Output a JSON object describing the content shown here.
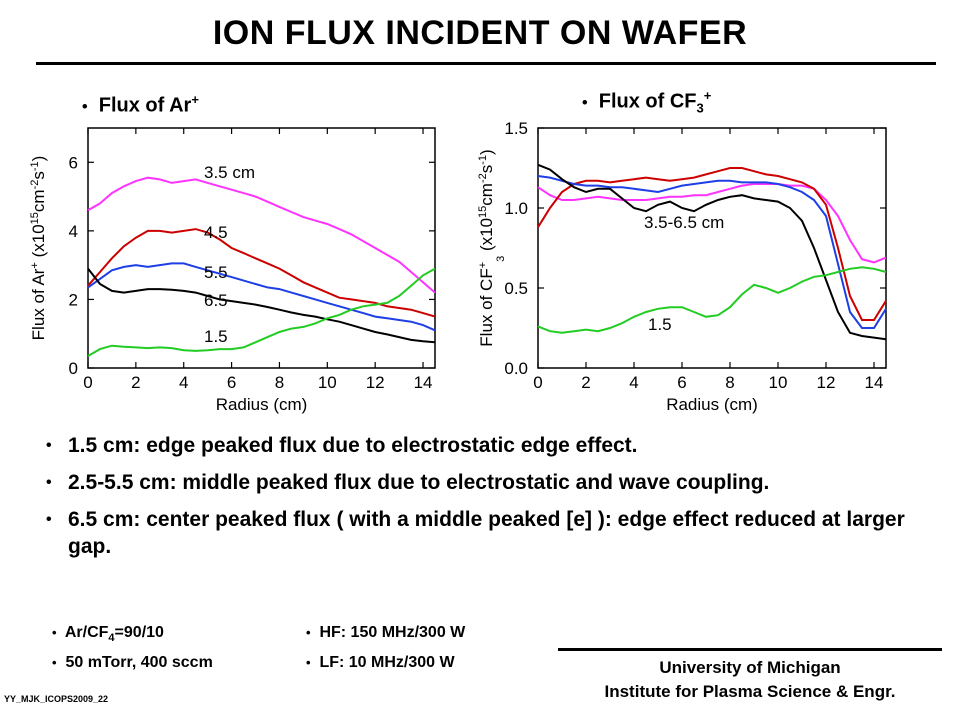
{
  "header": {
    "title": "ION FLUX INCIDENT ON WAFER"
  },
  "plot_labels": {
    "left": "Flux of Ar",
    "left_sup": "+",
    "right": "Flux of CF",
    "right_sub": "3",
    "right_sup": "+",
    "bullet_glyph": "•"
  },
  "chart_data": [
    {
      "type": "line",
      "xlabel": "Radius (cm)",
      "ylabel": "Flux of Ar+ (x10^15 cm^-2 s^-1)",
      "xlim": [
        0,
        14.5
      ],
      "ylim": [
        0,
        7
      ],
      "xticks": [
        0,
        2,
        4,
        6,
        8,
        10,
        12,
        14
      ],
      "yticks": [
        0,
        2,
        4,
        6
      ],
      "series": [
        {
          "name": "3.5 cm",
          "color": "#ff33ff",
          "x": [
            0,
            0.5,
            1,
            1.5,
            2,
            2.5,
            3,
            3.5,
            4,
            4.5,
            5,
            5.5,
            6,
            6.5,
            7,
            7.5,
            8,
            8.5,
            9,
            9.5,
            10,
            10.5,
            11,
            11.5,
            12,
            12.5,
            13,
            13.5,
            14,
            14.5
          ],
          "y": [
            4.6,
            4.8,
            5.1,
            5.3,
            5.45,
            5.55,
            5.5,
            5.4,
            5.45,
            5.5,
            5.4,
            5.3,
            5.2,
            5.1,
            5.0,
            4.85,
            4.7,
            4.55,
            4.4,
            4.3,
            4.2,
            4.05,
            3.9,
            3.7,
            3.5,
            3.3,
            3.1,
            2.8,
            2.5,
            2.2
          ]
        },
        {
          "name": "4.5",
          "color": "#cc0000",
          "x": [
            0,
            0.5,
            1,
            1.5,
            2,
            2.5,
            3,
            3.5,
            4,
            4.5,
            5,
            5.5,
            6,
            6.5,
            7,
            7.5,
            8,
            8.5,
            9,
            9.5,
            10,
            10.5,
            11,
            11.5,
            12,
            12.5,
            13,
            13.5,
            14,
            14.5
          ],
          "y": [
            2.4,
            2.8,
            3.2,
            3.55,
            3.8,
            4.0,
            4.0,
            3.95,
            4.0,
            4.05,
            3.95,
            3.75,
            3.5,
            3.35,
            3.2,
            3.05,
            2.9,
            2.7,
            2.5,
            2.35,
            2.2,
            2.05,
            2.0,
            1.95,
            1.9,
            1.8,
            1.75,
            1.7,
            1.6,
            1.5
          ]
        },
        {
          "name": "5.5",
          "color": "#1f3fe6",
          "x": [
            0,
            0.5,
            1,
            1.5,
            2,
            2.5,
            3,
            3.5,
            4,
            4.5,
            5,
            5.5,
            6,
            6.5,
            7,
            7.5,
            8,
            8.5,
            9,
            9.5,
            10,
            10.5,
            11,
            11.5,
            12,
            12.5,
            13,
            13.5,
            14,
            14.5
          ],
          "y": [
            2.35,
            2.6,
            2.85,
            2.95,
            3.0,
            2.95,
            3.0,
            3.05,
            3.05,
            2.95,
            2.85,
            2.75,
            2.65,
            2.55,
            2.45,
            2.35,
            2.3,
            2.2,
            2.1,
            2.0,
            1.9,
            1.8,
            1.7,
            1.6,
            1.5,
            1.45,
            1.4,
            1.35,
            1.25,
            1.1
          ]
        },
        {
          "name": "6.5",
          "color": "#000000",
          "x": [
            0,
            0.5,
            1,
            1.5,
            2,
            2.5,
            3,
            3.5,
            4,
            4.5,
            5,
            5.5,
            6,
            6.5,
            7,
            7.5,
            8,
            8.5,
            9,
            9.5,
            10,
            10.5,
            11,
            11.5,
            12,
            12.5,
            13,
            13.5,
            14,
            14.5
          ],
          "y": [
            2.9,
            2.45,
            2.25,
            2.2,
            2.25,
            2.3,
            2.3,
            2.28,
            2.25,
            2.2,
            2.1,
            2.0,
            1.95,
            1.9,
            1.85,
            1.78,
            1.7,
            1.62,
            1.55,
            1.5,
            1.42,
            1.35,
            1.25,
            1.15,
            1.05,
            0.98,
            0.9,
            0.82,
            0.78,
            0.75
          ]
        },
        {
          "name": "1.5",
          "color": "#22cc22",
          "x": [
            0,
            0.5,
            1,
            1.5,
            2,
            2.5,
            3,
            3.5,
            4,
            4.5,
            5,
            5.5,
            6,
            6.5,
            7,
            7.5,
            8,
            8.5,
            9,
            9.5,
            10,
            10.5,
            11,
            11.5,
            12,
            12.5,
            13,
            13.5,
            14,
            14.5
          ],
          "y": [
            0.35,
            0.55,
            0.65,
            0.62,
            0.6,
            0.58,
            0.6,
            0.58,
            0.52,
            0.5,
            0.52,
            0.55,
            0.55,
            0.6,
            0.75,
            0.9,
            1.05,
            1.15,
            1.2,
            1.3,
            1.45,
            1.55,
            1.7,
            1.8,
            1.85,
            1.9,
            2.1,
            2.4,
            2.7,
            2.9
          ]
        }
      ]
    },
    {
      "type": "line",
      "xlabel": "Radius (cm)",
      "ylabel": "Flux of CF3+ (x10^15 cm^-2 s^-1)",
      "xlim": [
        0,
        14.5
      ],
      "ylim": [
        0,
        1.5
      ],
      "xticks": [
        0,
        2,
        4,
        6,
        8,
        10,
        12,
        14
      ],
      "yticks": [
        0.0,
        0.5,
        1.0,
        1.5
      ],
      "annotations": [
        "3.5-6.5 cm",
        "1.5"
      ],
      "series": [
        {
          "color": "#ff33ff",
          "x": [
            0,
            0.5,
            1,
            1.5,
            2,
            2.5,
            3,
            3.5,
            4,
            4.5,
            5,
            5.5,
            6,
            6.5,
            7,
            7.5,
            8,
            8.5,
            9,
            9.5,
            10,
            10.5,
            11,
            11.5,
            12,
            12.5,
            13,
            13.5,
            14,
            14.5
          ],
          "y": [
            1.13,
            1.08,
            1.05,
            1.05,
            1.06,
            1.07,
            1.06,
            1.05,
            1.05,
            1.05,
            1.06,
            1.07,
            1.07,
            1.08,
            1.08,
            1.1,
            1.12,
            1.14,
            1.15,
            1.15,
            1.15,
            1.14,
            1.14,
            1.12,
            1.05,
            0.95,
            0.8,
            0.68,
            0.66,
            0.69
          ]
        },
        {
          "color": "#cc0000",
          "x": [
            0,
            0.5,
            1,
            1.5,
            2,
            2.5,
            3,
            3.5,
            4,
            4.5,
            5,
            5.5,
            6,
            6.5,
            7,
            7.5,
            8,
            8.5,
            9,
            9.5,
            10,
            10.5,
            11,
            11.5,
            12,
            12.5,
            13,
            13.5,
            14,
            14.5
          ],
          "y": [
            0.88,
            1.0,
            1.1,
            1.15,
            1.17,
            1.17,
            1.16,
            1.17,
            1.18,
            1.19,
            1.18,
            1.17,
            1.18,
            1.19,
            1.21,
            1.23,
            1.25,
            1.25,
            1.23,
            1.21,
            1.2,
            1.18,
            1.16,
            1.12,
            1.02,
            0.75,
            0.45,
            0.3,
            0.3,
            0.42
          ]
        },
        {
          "color": "#1f3fe6",
          "x": [
            0,
            0.5,
            1,
            1.5,
            2,
            2.5,
            3,
            3.5,
            4,
            4.5,
            5,
            5.5,
            6,
            6.5,
            7,
            7.5,
            8,
            8.5,
            9,
            9.5,
            10,
            10.5,
            11,
            11.5,
            12,
            12.5,
            13,
            13.5,
            14,
            14.5
          ],
          "y": [
            1.2,
            1.19,
            1.17,
            1.15,
            1.14,
            1.14,
            1.13,
            1.13,
            1.12,
            1.11,
            1.1,
            1.12,
            1.14,
            1.15,
            1.16,
            1.17,
            1.17,
            1.16,
            1.16,
            1.16,
            1.15,
            1.13,
            1.1,
            1.05,
            0.95,
            0.65,
            0.35,
            0.25,
            0.25,
            0.37
          ]
        },
        {
          "color": "#000000",
          "x": [
            0,
            0.5,
            1,
            1.5,
            2,
            2.5,
            3,
            3.5,
            4,
            4.5,
            5,
            5.5,
            6,
            6.5,
            7,
            7.5,
            8,
            8.5,
            9,
            9.5,
            10,
            10.5,
            11,
            11.5,
            12,
            12.5,
            13,
            13.5,
            14,
            14.5
          ],
          "y": [
            1.27,
            1.24,
            1.18,
            1.13,
            1.1,
            1.12,
            1.12,
            1.06,
            1.0,
            0.98,
            1.02,
            1.04,
            1.0,
            0.98,
            1.02,
            1.05,
            1.07,
            1.08,
            1.06,
            1.05,
            1.04,
            1.0,
            0.92,
            0.75,
            0.55,
            0.35,
            0.22,
            0.2,
            0.19,
            0.18
          ]
        },
        {
          "color": "#22cc22",
          "x": [
            0,
            0.5,
            1,
            1.5,
            2,
            2.5,
            3,
            3.5,
            4,
            4.5,
            5,
            5.5,
            6,
            6.5,
            7,
            7.5,
            8,
            8.5,
            9,
            9.5,
            10,
            10.5,
            11,
            11.5,
            12,
            12.5,
            13,
            13.5,
            14,
            14.5
          ],
          "y": [
            0.26,
            0.23,
            0.22,
            0.23,
            0.24,
            0.23,
            0.25,
            0.28,
            0.32,
            0.35,
            0.37,
            0.38,
            0.38,
            0.35,
            0.32,
            0.33,
            0.38,
            0.46,
            0.52,
            0.5,
            0.47,
            0.5,
            0.54,
            0.57,
            0.58,
            0.6,
            0.62,
            0.63,
            0.62,
            0.6
          ]
        }
      ]
    }
  ],
  "chart_text": {
    "left": {
      "ylabel_pre": "Flux of Ar",
      "ylabel_units": "(x10",
      "ylabel_cm": "cm",
      "ylabel_s": "s",
      "exp15": "15",
      "expm2": "-2",
      "expm1": "-1",
      "plus": "+"
    },
    "right": {
      "ylabel_pre": "Flux of CF",
      "sub3": "3"
    }
  },
  "bullets": [
    "1.5 cm: edge peaked flux due to electrostatic edge effect.",
    "2.5-5.5 cm: middle peaked flux due to electrostatic and wave coupling.",
    "6.5 cm: center peaked flux ( with a middle peaked [e] ): edge effect reduced at larger gap."
  ],
  "conditions": {
    "gas_pre": "Ar/CF",
    "gas_sub": "4",
    "gas_post": "=90/10",
    "pressure": "50 mTorr, 400 sccm",
    "hf": "HF: 150 MHz/300 W",
    "lf": "LF: 10 MHz/300 W"
  },
  "footer": {
    "line1": "University of Michigan",
    "line2": "Institute for Plasma Science & Engr."
  },
  "slide_code": "YY_MJK_ICOPS2009_22"
}
